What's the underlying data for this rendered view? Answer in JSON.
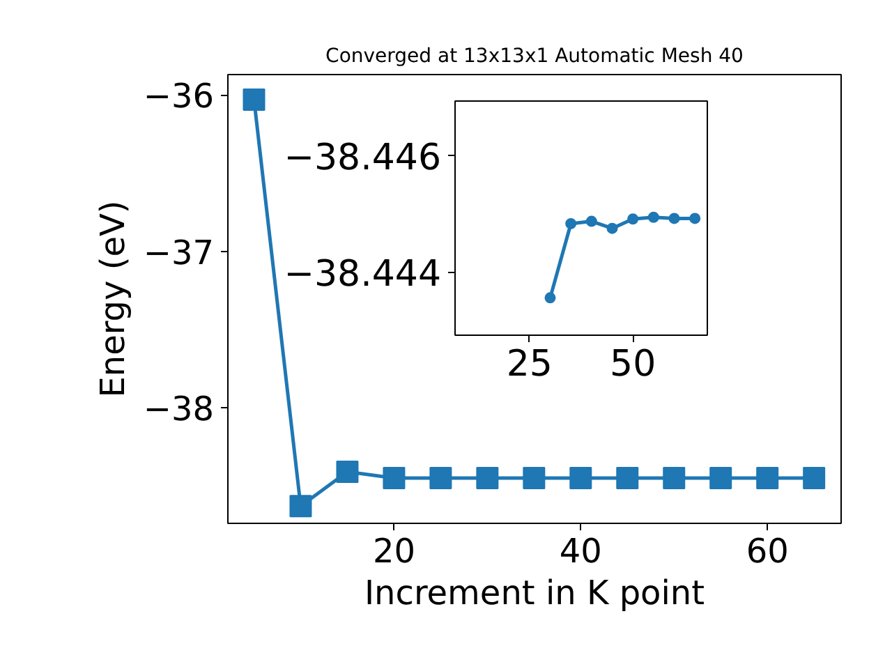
{
  "chart_data": [
    {
      "type": "line",
      "title": "Converged at 13x13x1 Automatic Mesh 40",
      "xlabel": "Increment in K point",
      "ylabel": "Energy (eV)",
      "marker": "square",
      "line_style": "solid",
      "grid": false,
      "x": [
        5,
        10,
        15,
        20,
        25,
        30,
        35,
        40,
        45,
        50,
        55,
        60,
        65
      ],
      "series": [
        {
          "color": "#1f77b4",
          "values": [
            -36.03,
            -38.63,
            -38.41,
            -38.45,
            -38.45,
            -38.45,
            -38.45,
            -38.45,
            -38.45,
            -38.45,
            -38.45,
            -38.45,
            -38.45
          ]
        }
      ],
      "xlim": [
        2.2,
        67.9
      ],
      "ylim": [
        -38.74,
        -35.87
      ],
      "xticks": [
        20,
        40,
        60
      ],
      "yticks": [
        {
          "value": -36,
          "label": "−36"
        },
        {
          "value": -37,
          "label": "−37"
        },
        {
          "value": -38,
          "label": "−38"
        }
      ]
    },
    {
      "type": "line",
      "marker": "circle",
      "line_style": "solid",
      "grid": false,
      "x": [
        30,
        35,
        40,
        45,
        50,
        55,
        60,
        65
      ],
      "series": [
        {
          "color": "#1f77b4",
          "values": [
            -38.44357,
            -38.44484,
            -38.44488,
            -38.44476,
            -38.44492,
            -38.44495,
            -38.44493,
            -38.44493
          ]
        }
      ],
      "xlim": [
        7.0,
        68.0
      ],
      "ylim": [
        -38.44293,
        -38.44694
      ],
      "xticks": [
        25,
        50
      ],
      "yticks": [
        {
          "value": -38.446,
          "label": "−38.446"
        },
        {
          "value": -38.444,
          "label": "−38.444"
        }
      ]
    }
  ]
}
